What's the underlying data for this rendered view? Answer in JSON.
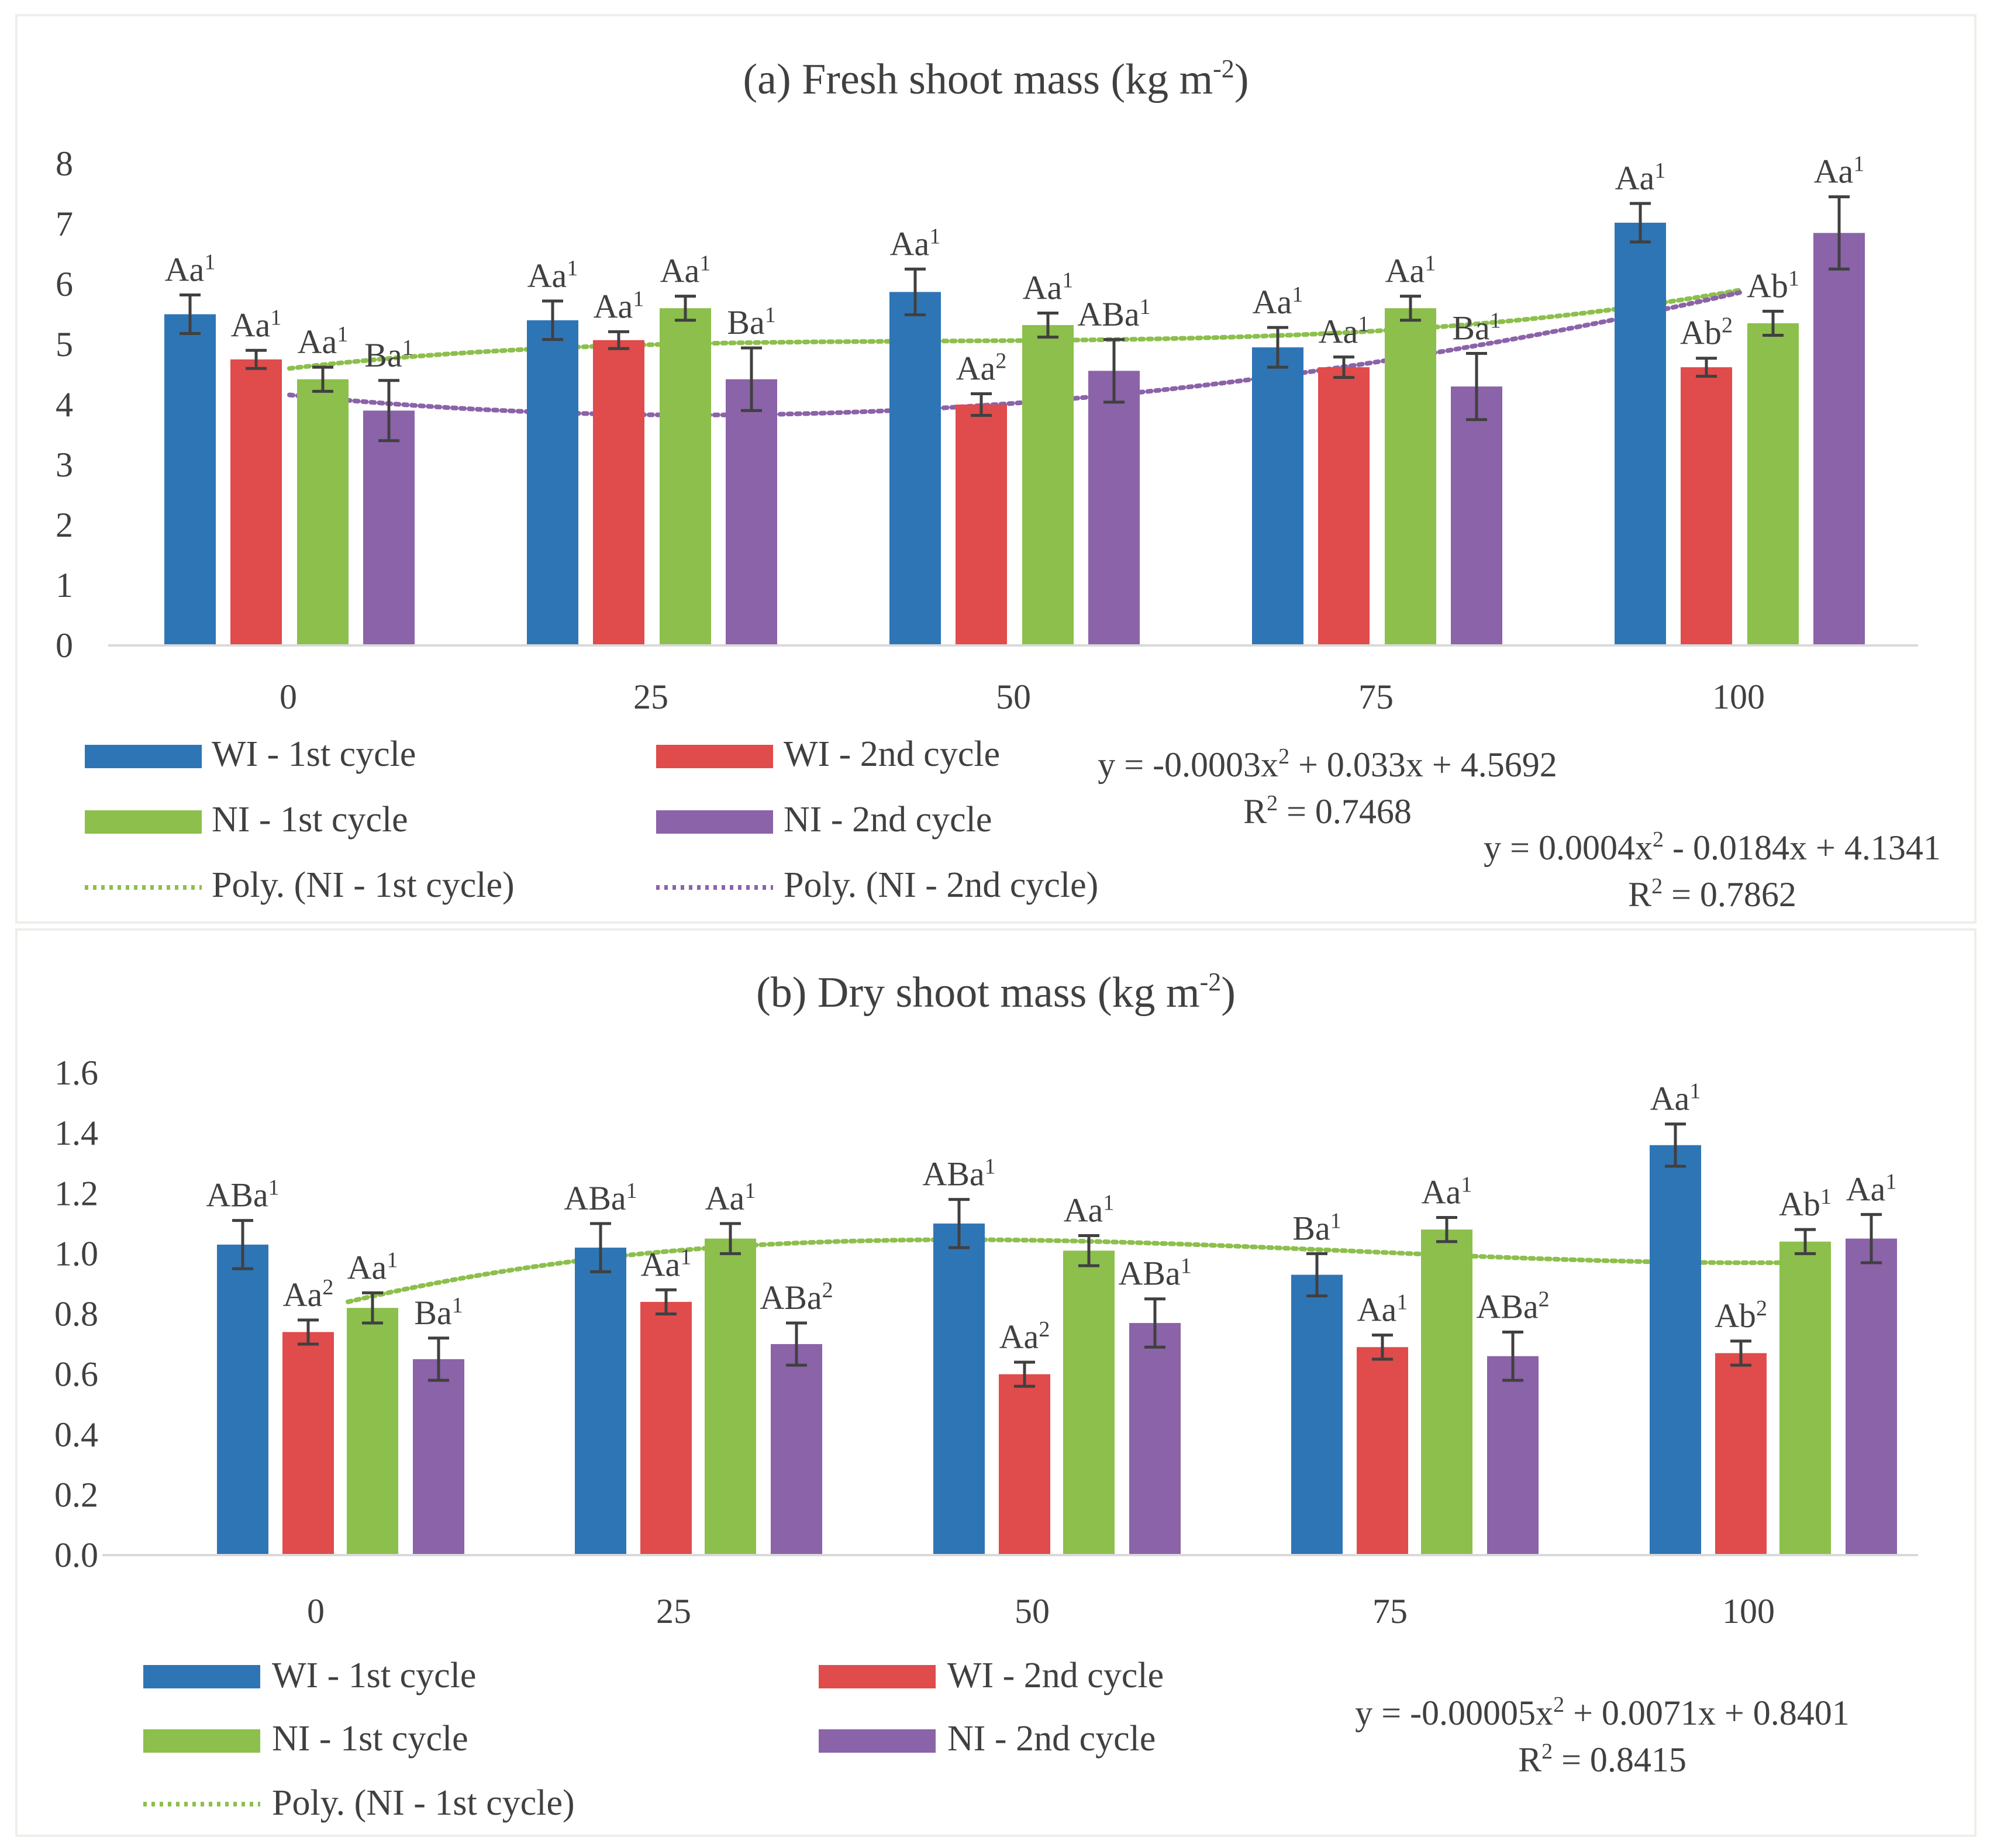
{
  "chart_data": [
    {
      "type": "bar",
      "title": "(a) Fresh shoot mass (kg m",
      "title_sup": "-2",
      "title_end": ")",
      "categories": [
        "0",
        "25",
        "50",
        "75",
        "100"
      ],
      "ylim": [
        0,
        8
      ],
      "yticks": [
        "0",
        "1",
        "2",
        "3",
        "4",
        "5",
        "6",
        "7",
        "8"
      ],
      "grid": false,
      "series": [
        {
          "name": "WI - 1st cycle",
          "color": "#2E75B6",
          "values": [
            5.5,
            5.4,
            5.87,
            4.95,
            7.02
          ],
          "errors": [
            0.32,
            0.32,
            0.38,
            0.33,
            0.32
          ],
          "labels": [
            [
              "Aa",
              "1"
            ],
            [
              "Aa",
              "1"
            ],
            [
              "Aa",
              "1"
            ],
            [
              "Aa",
              "1"
            ],
            [
              "Aa",
              "1"
            ]
          ]
        },
        {
          "name": "WI - 2nd cycle",
          "color": "#E04B4B",
          "values": [
            4.75,
            5.07,
            4.0,
            4.62,
            4.62
          ],
          "errors": [
            0.15,
            0.14,
            0.18,
            0.17,
            0.15
          ],
          "labels": [
            [
              "Aa",
              "1"
            ],
            [
              "Aa",
              "1"
            ],
            [
              "Aa",
              "2"
            ],
            [
              "Aa",
              "1"
            ],
            [
              "Ab",
              "2"
            ]
          ]
        },
        {
          "name": "NI - 1st cycle",
          "color": "#8CBF4C",
          "values": [
            4.42,
            5.6,
            5.32,
            5.6,
            5.35
          ],
          "errors": [
            0.2,
            0.2,
            0.2,
            0.2,
            0.2
          ],
          "labels": [
            [
              "Aa",
              "1"
            ],
            [
              "Aa",
              "1"
            ],
            [
              "Aa",
              "1"
            ],
            [
              "Aa",
              "1"
            ],
            [
              "Ab",
              "1"
            ]
          ]
        },
        {
          "name": "NI - 2nd cycle",
          "color": "#8B63A8",
          "values": [
            3.9,
            4.42,
            4.56,
            4.3,
            6.85
          ],
          "errors": [
            0.5,
            0.52,
            0.52,
            0.55,
            0.6
          ],
          "labels": [
            [
              "Ba",
              "1"
            ],
            [
              "Ba",
              "1"
            ],
            [
              "ABa",
              "1"
            ],
            [
              "Ba",
              "1"
            ],
            [
              "Aa",
              "1"
            ]
          ]
        }
      ],
      "trendlines": [
        {
          "name": "Poly. (NI - 1st cycle)",
          "color": "#8CBF4C",
          "coeffs": [
            4.5e-06,
            -0.0006,
            0.028,
            4.6
          ]
        },
        {
          "name": "Poly. (NI - 2nd cycle)",
          "color": "#8B63A8",
          "coeffs": [
            -3e-07,
            0.00044,
            -0.024,
            4.16
          ]
        }
      ],
      "legend": [
        "WI - 1st cycle",
        "WI - 2nd cycle",
        "NI - 1st cycle",
        "NI - 2nd cycle",
        "Poly. (NI - 1st cycle)",
        "Poly. (NI - 2nd cycle)"
      ],
      "equations": [
        {
          "eq_parts": [
            "y = -0.0003x",
            "2",
            " + 0.033x + 4.5692"
          ],
          "r2_parts": [
            "R",
            "2",
            " = 0.7468"
          ]
        },
        {
          "eq_parts": [
            "y = 0.0004x",
            "2",
            " - 0.0184x + 4.1341"
          ],
          "r2_parts": [
            "R",
            "2",
            " = 0.7862"
          ]
        }
      ]
    },
    {
      "type": "bar",
      "title": "(b) Dry shoot mass (kg m",
      "title_sup": "-2",
      "title_end": ")",
      "categories": [
        "0",
        "25",
        "50",
        "75",
        "100"
      ],
      "ylim": [
        0,
        1.6
      ],
      "yticks": [
        "0.0",
        "0.2",
        "0.4",
        "0.6",
        "0.8",
        "1.0",
        "1.2",
        "1.4",
        "1.6"
      ],
      "grid": false,
      "series": [
        {
          "name": "WI - 1st cycle",
          "color": "#2E75B6",
          "values": [
            1.03,
            1.02,
            1.1,
            0.93,
            1.36
          ],
          "errors": [
            0.08,
            0.08,
            0.08,
            0.07,
            0.07
          ],
          "labels": [
            [
              "ABa",
              "1"
            ],
            [
              "ABa",
              "1"
            ],
            [
              "ABa",
              "1"
            ],
            [
              "Ba",
              "1"
            ],
            [
              "Aa",
              "1"
            ]
          ]
        },
        {
          "name": "WI - 2nd cycle",
          "color": "#E04B4B",
          "values": [
            0.74,
            0.84,
            0.6,
            0.69,
            0.67
          ],
          "errors": [
            0.04,
            0.04,
            0.04,
            0.04,
            0.04
          ],
          "labels": [
            [
              "Aa",
              "2"
            ],
            [
              "Aa",
              "1"
            ],
            [
              "Aa",
              "2"
            ],
            [
              "Aa",
              "1"
            ],
            [
              "Ab",
              "2"
            ]
          ]
        },
        {
          "name": "NI - 1st cycle",
          "color": "#8CBF4C",
          "values": [
            0.82,
            1.05,
            1.01,
            1.08,
            1.04
          ],
          "errors": [
            0.05,
            0.05,
            0.05,
            0.04,
            0.04
          ],
          "labels": [
            [
              "Aa",
              "1"
            ],
            [
              "Aa",
              "1"
            ],
            [
              "Aa",
              "1"
            ],
            [
              "Aa",
              "1"
            ],
            [
              "Ab",
              "1"
            ]
          ]
        },
        {
          "name": "NI - 2nd cycle",
          "color": "#8B63A8",
          "values": [
            0.65,
            0.7,
            0.77,
            0.66,
            1.05
          ],
          "errors": [
            0.07,
            0.07,
            0.08,
            0.08,
            0.08
          ],
          "labels": [
            [
              "Ba",
              "1"
            ],
            [
              "ABa",
              "2"
            ],
            [
              "ABa",
              "1"
            ],
            [
              "ABa",
              "2"
            ],
            [
              "Aa",
              "1"
            ]
          ]
        }
      ],
      "trendlines": [
        {
          "name": "Poly. (NI - 1st cycle)",
          "color": "#8CBF4C",
          "coeffs": [
            9e-07,
            -0.00019,
            0.0113,
            0.8401
          ]
        }
      ],
      "legend": [
        "WI - 1st cycle",
        "WI - 2nd cycle",
        "NI - 1st cycle",
        "NI - 2nd cycle",
        "Poly. (NI - 1st cycle)"
      ],
      "equations": [
        {
          "eq_parts": [
            "y = -0.00005x",
            "2",
            " + 0.0071x + 0.8401"
          ],
          "r2_parts": [
            "R",
            "2",
            " = 0.8415"
          ]
        }
      ]
    }
  ]
}
